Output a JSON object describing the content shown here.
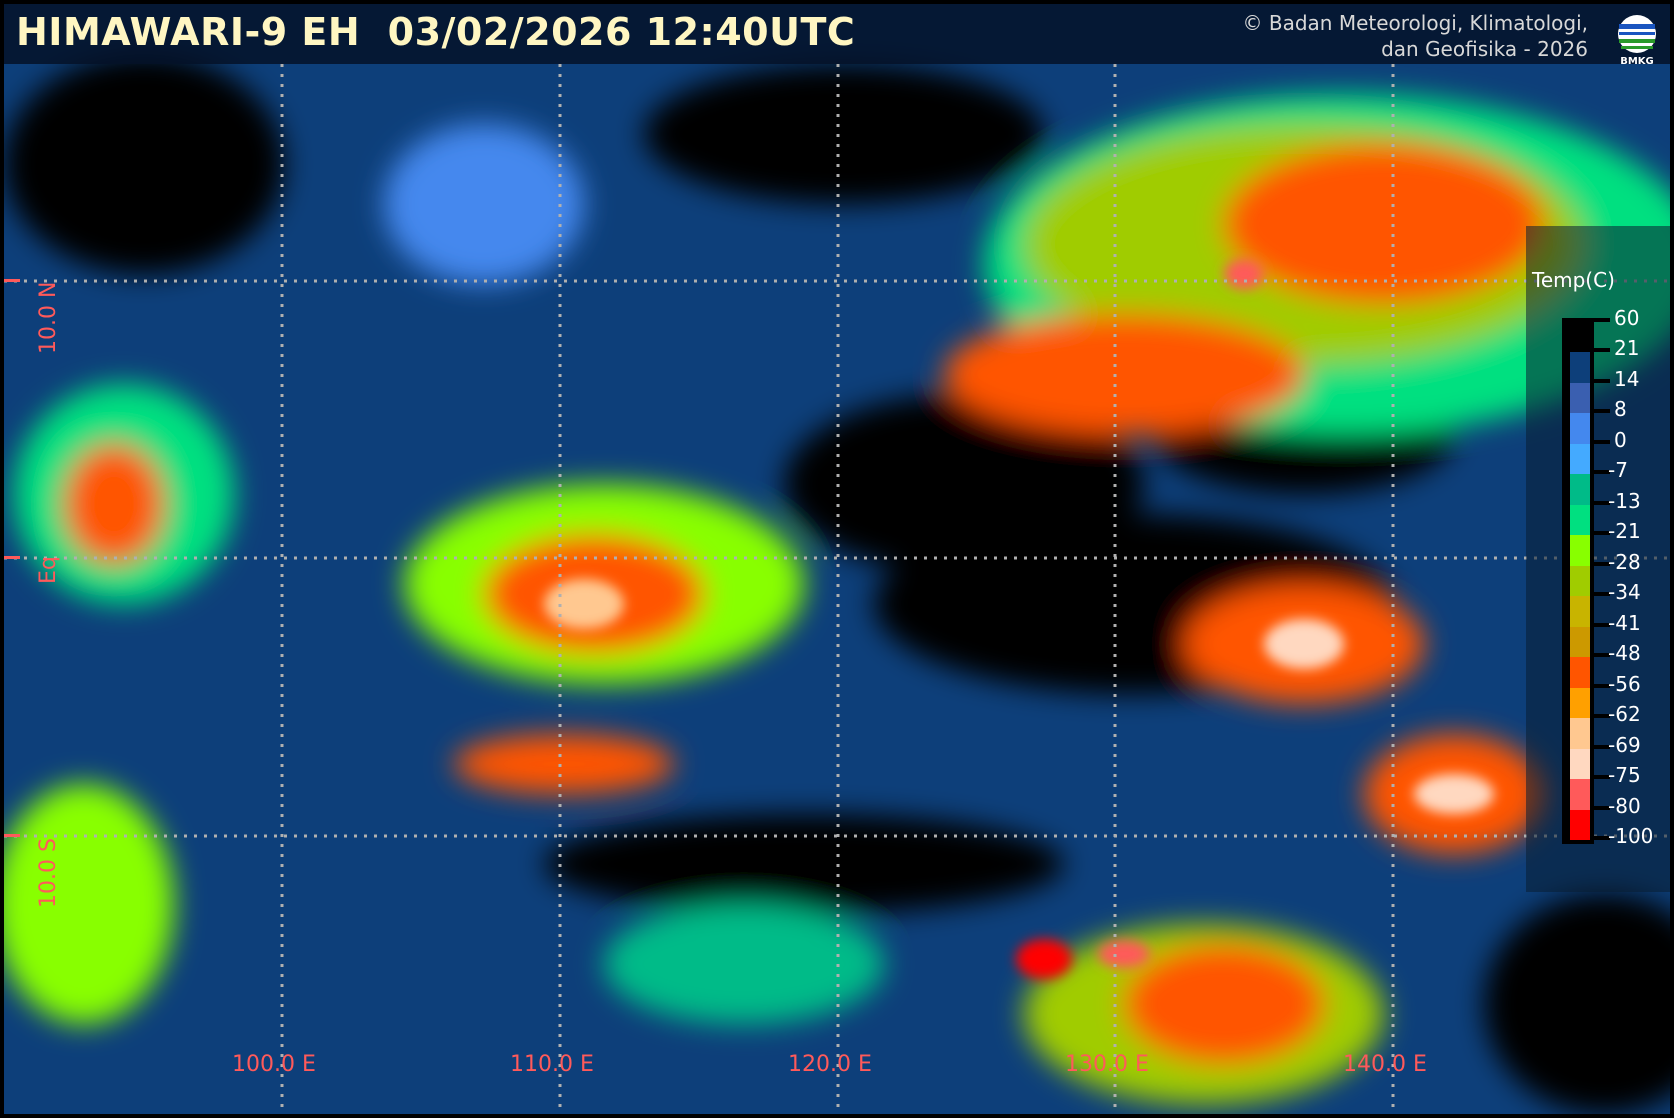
{
  "header": {
    "title": "HIMAWARI-9 EH  03/02/2026 12:40UTC",
    "credit_line1": "© Badan Meteorologi, Klimatologi,",
    "credit_line2": "dan Geofisika -  2026",
    "logo_text": "BMKG"
  },
  "grid": {
    "latitudes": [
      "10.0 N",
      "Eq",
      "10.0 S"
    ],
    "longitudes": [
      "100.0 E",
      "110.0 E",
      "120.0 E",
      "130.0 E",
      "140.0 E"
    ],
    "line_color": "#b0b0b0",
    "label_color": "#ff5a5a"
  },
  "legend": {
    "title": "Temp(C)",
    "labels": [
      "60",
      "21",
      "14",
      "8",
      "0",
      "-7",
      "-13",
      "-21",
      "-28",
      "-34",
      "-41",
      "-48",
      "-56",
      "-62",
      "-69",
      "-75",
      "-80",
      "-100"
    ],
    "colors": [
      "#000000",
      "#0d3f7a",
      "#3a5fb0",
      "#4488ee",
      "#44aaff",
      "#00bb88",
      "#00e080",
      "#88ff00",
      "#a0cc00",
      "#c8b400",
      "#cc9900",
      "#ff5500",
      "#ffa000",
      "#ffc890",
      "#ffd8c0",
      "#ff5a5a",
      "#ff0000"
    ]
  }
}
